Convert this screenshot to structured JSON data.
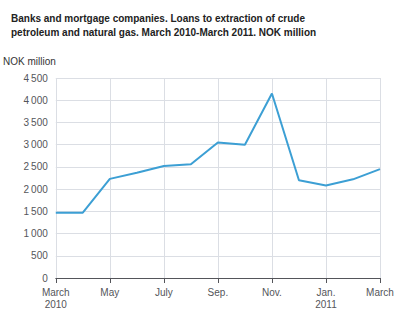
{
  "chart_data": {
    "type": "line",
    "title": "Banks and mortgage companies. Loans to extraction of crude\npetroleum and natural gas. March 2010-March 2011. NOK million",
    "ylabel": "NOK million",
    "categories": [
      "March\n2010",
      null,
      "May",
      null,
      "July",
      null,
      "Sep.",
      null,
      "Nov.",
      null,
      "Jan.\n2011",
      null,
      "March"
    ],
    "values": [
      1470,
      1470,
      2230,
      2370,
      2520,
      2560,
      3050,
      3000,
      4150,
      2200,
      2080,
      2220,
      2450
    ],
    "color": "#3c9fd4",
    "ylim": [
      0,
      4500
    ],
    "yticks": [
      0,
      500,
      {
        "value": 1000,
        "label": "1 000"
      },
      {
        "value": 1500,
        "label": "1 500"
      },
      {
        "value": 2000,
        "label": "2 000"
      },
      {
        "value": 2500,
        "label": "2 500"
      },
      {
        "value": 3000,
        "label": "3 000"
      },
      {
        "value": 3500,
        "label": "3 500"
      },
      {
        "value": 4000,
        "label": "4 000"
      },
      {
        "value": 4500,
        "label": "4 500"
      }
    ],
    "grid": true
  }
}
